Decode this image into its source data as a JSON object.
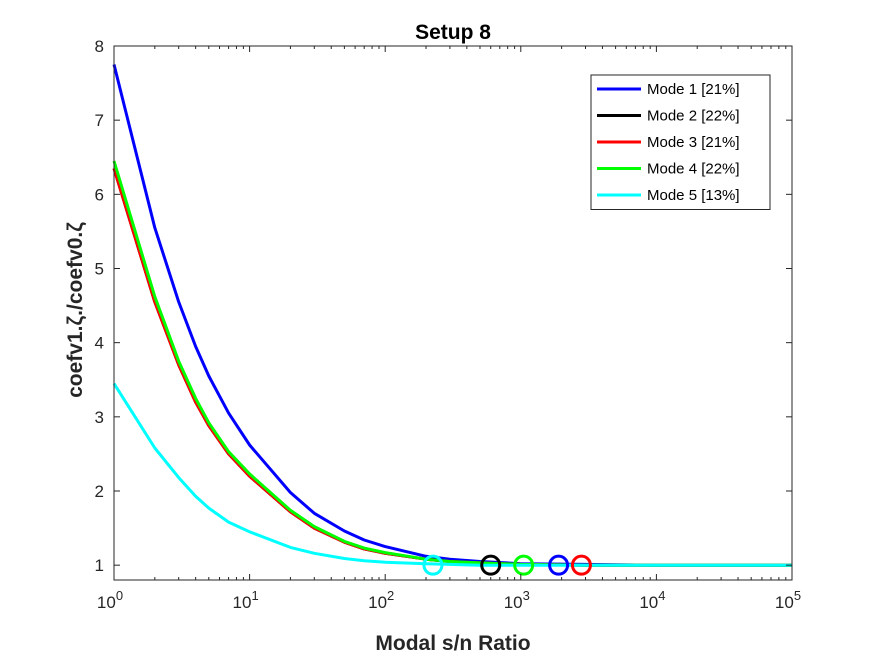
{
  "chart_data": {
    "type": "line",
    "title": "Setup 8",
    "xlabel": "Modal s/n Ratio",
    "ylabel": "coefv1.ζ./coefv0.ζ",
    "xscale": "log",
    "xlim": [
      1,
      100000
    ],
    "ylim": [
      0.8,
      8
    ],
    "xticks": [
      1,
      10,
      100,
      1000,
      10000,
      100000
    ],
    "xtick_labels": [
      {
        "base": "10",
        "exp": "0"
      },
      {
        "base": "10",
        "exp": "1"
      },
      {
        "base": "10",
        "exp": "2"
      },
      {
        "base": "10",
        "exp": "3"
      },
      {
        "base": "10",
        "exp": "4"
      },
      {
        "base": "10",
        "exp": "5"
      }
    ],
    "yticks": [
      1,
      2,
      3,
      4,
      5,
      6,
      7,
      8
    ],
    "ytick_labels": [
      "1",
      "2",
      "3",
      "4",
      "5",
      "6",
      "7",
      "8"
    ],
    "grid": false,
    "legend_position": "top-right",
    "x": [
      1,
      2,
      3,
      4,
      5,
      7,
      10,
      20,
      30,
      50,
      70,
      100,
      200,
      300,
      500,
      1000,
      3000,
      10000,
      100000
    ],
    "series": [
      {
        "name": "Mode 1 [21%]",
        "color": "#0000ff",
        "values": [
          7.75,
          5.55,
          4.55,
          3.95,
          3.55,
          3.05,
          2.62,
          1.98,
          1.7,
          1.46,
          1.34,
          1.25,
          1.12,
          1.08,
          1.05,
          1.02,
          1.01,
          1.0,
          1.0
        ],
        "marker": {
          "x": 1900,
          "y": 1.0
        }
      },
      {
        "name": "Mode 2 [22%]",
        "color": "#000000",
        "values": [
          6.35,
          4.55,
          3.7,
          3.2,
          2.88,
          2.5,
          2.2,
          1.72,
          1.5,
          1.31,
          1.22,
          1.16,
          1.08,
          1.05,
          1.03,
          1.01,
          1.0,
          1.0,
          1.0
        ],
        "marker": {
          "x": 600,
          "y": 1.0
        }
      },
      {
        "name": "Mode 3 [21%]",
        "color": "#ff0000",
        "values": [
          6.35,
          4.55,
          3.7,
          3.2,
          2.88,
          2.5,
          2.2,
          1.72,
          1.5,
          1.31,
          1.22,
          1.16,
          1.08,
          1.05,
          1.03,
          1.01,
          1.0,
          1.0,
          1.0
        ],
        "marker": {
          "x": 2800,
          "y": 1.0
        }
      },
      {
        "name": "Mode 4 [22%]",
        "color": "#00ff00",
        "values": [
          6.45,
          4.62,
          3.75,
          3.25,
          2.92,
          2.53,
          2.23,
          1.74,
          1.52,
          1.32,
          1.23,
          1.17,
          1.08,
          1.05,
          1.03,
          1.01,
          1.0,
          1.0,
          1.0
        ],
        "marker": {
          "x": 1050,
          "y": 1.0
        }
      },
      {
        "name": "Mode 5 [13%]",
        "color": "#00ffff",
        "values": [
          3.45,
          2.58,
          2.18,
          1.93,
          1.77,
          1.58,
          1.45,
          1.24,
          1.16,
          1.09,
          1.06,
          1.04,
          1.02,
          1.01,
          1.0,
          1.0,
          1.0,
          1.0,
          1.0
        ],
        "marker": {
          "x": 225,
          "y": 1.0
        }
      }
    ]
  }
}
